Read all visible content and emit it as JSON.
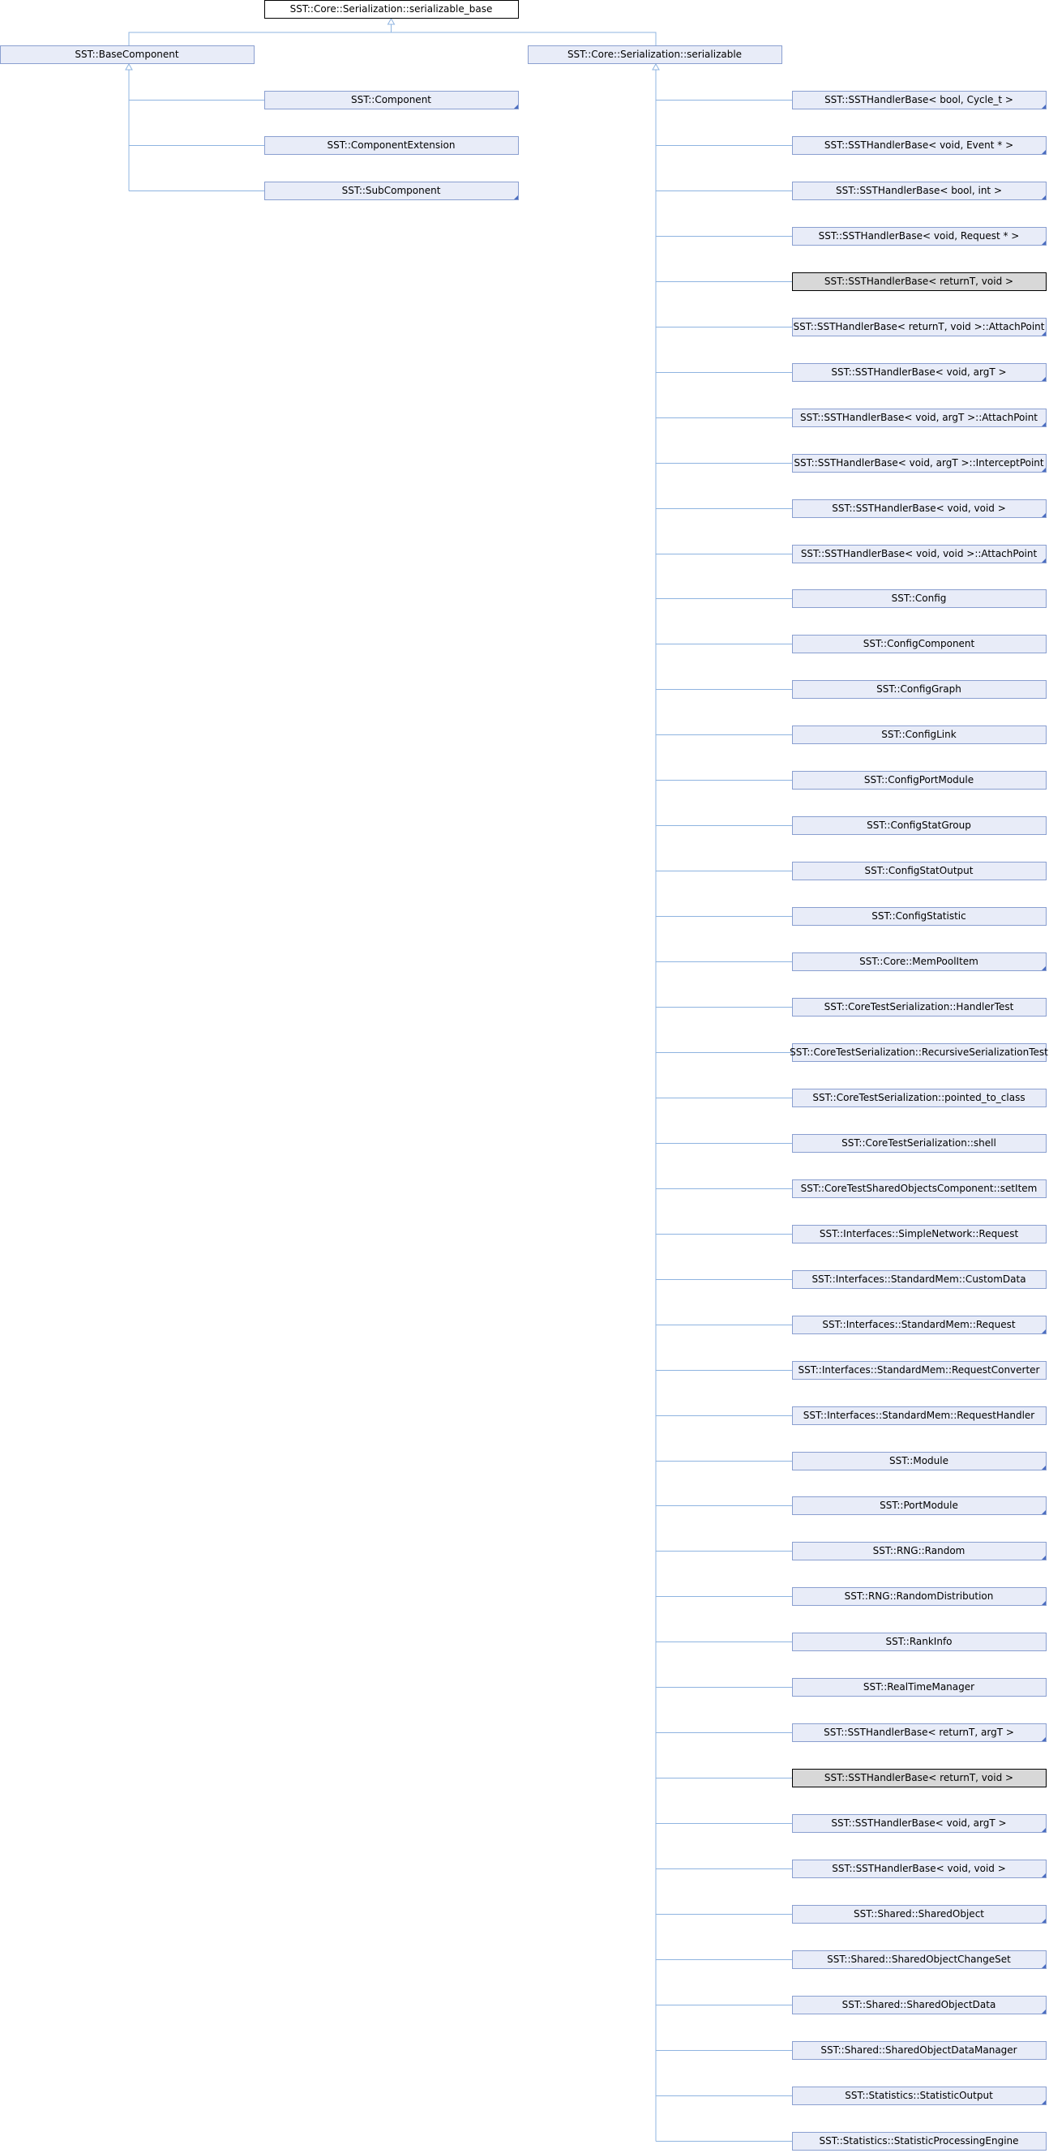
{
  "root": {
    "label": "SST::Core::Serialization::serializable_base"
  },
  "parents": [
    {
      "label": "SST::BaseComponent"
    },
    {
      "label": "SST::Core::Serialization::serializable"
    }
  ],
  "left_children": [
    {
      "label": "SST::Component",
      "more": true
    },
    {
      "label": "SST::ComponentExtension",
      "more": false
    },
    {
      "label": "SST::SubComponent",
      "more": true
    }
  ],
  "right_children": [
    {
      "label": "SST::SSTHandlerBase< bool, Cycle_t >",
      "more": true
    },
    {
      "label": "SST::SSTHandlerBase< void, Event * >",
      "more": true
    },
    {
      "label": "SST::SSTHandlerBase< bool, int >",
      "more": true
    },
    {
      "label": "SST::SSTHandlerBase< void, Request * >",
      "more": true
    },
    {
      "label": "SST::SSTHandlerBase< returnT, void >",
      "more": false,
      "highlight": true
    },
    {
      "label": "SST::SSTHandlerBase< returnT, void >::AttachPoint",
      "more": true
    },
    {
      "label": "SST::SSTHandlerBase< void, argT >",
      "more": true
    },
    {
      "label": "SST::SSTHandlerBase< void, argT >::AttachPoint",
      "more": true
    },
    {
      "label": "SST::SSTHandlerBase< void, argT >::InterceptPoint",
      "more": true
    },
    {
      "label": "SST::SSTHandlerBase< void, void >",
      "more": true
    },
    {
      "label": "SST::SSTHandlerBase< void, void >::AttachPoint",
      "more": true
    },
    {
      "label": "SST::Config",
      "more": false
    },
    {
      "label": "SST::ConfigComponent",
      "more": false
    },
    {
      "label": "SST::ConfigGraph",
      "more": false
    },
    {
      "label": "SST::ConfigLink",
      "more": false
    },
    {
      "label": "SST::ConfigPortModule",
      "more": false
    },
    {
      "label": "SST::ConfigStatGroup",
      "more": false
    },
    {
      "label": "SST::ConfigStatOutput",
      "more": false
    },
    {
      "label": "SST::ConfigStatistic",
      "more": false
    },
    {
      "label": "SST::Core::MemPoolItem",
      "more": true
    },
    {
      "label": "SST::CoreTestSerialization::HandlerTest",
      "more": false
    },
    {
      "label": "SST::CoreTestSerialization::RecursiveSerializationTest",
      "more": false
    },
    {
      "label": "SST::CoreTestSerialization::pointed_to_class",
      "more": false
    },
    {
      "label": "SST::CoreTestSerialization::shell",
      "more": false
    },
    {
      "label": "SST::CoreTestSharedObjectsComponent::setItem",
      "more": false
    },
    {
      "label": "SST::Interfaces::SimpleNetwork::Request",
      "more": false
    },
    {
      "label": "SST::Interfaces::StandardMem::CustomData",
      "more": false
    },
    {
      "label": "SST::Interfaces::StandardMem::Request",
      "more": true
    },
    {
      "label": "SST::Interfaces::StandardMem::RequestConverter",
      "more": false
    },
    {
      "label": "SST::Interfaces::StandardMem::RequestHandler",
      "more": false
    },
    {
      "label": "SST::Module",
      "more": true
    },
    {
      "label": "SST::PortModule",
      "more": true
    },
    {
      "label": "SST::RNG::Random",
      "more": true
    },
    {
      "label": "SST::RNG::RandomDistribution",
      "more": true
    },
    {
      "label": "SST::RankInfo",
      "more": false
    },
    {
      "label": "SST::RealTimeManager",
      "more": false
    },
    {
      "label": "SST::SSTHandlerBase< returnT, argT >",
      "more": true
    },
    {
      "label": "SST::SSTHandlerBase< returnT, void >",
      "more": false,
      "highlight": true
    },
    {
      "label": "SST::SSTHandlerBase< void, argT >",
      "more": true
    },
    {
      "label": "SST::SSTHandlerBase< void, void >",
      "more": true
    },
    {
      "label": "SST::Shared::SharedObject",
      "more": true
    },
    {
      "label": "SST::Shared::SharedObjectChangeSet",
      "more": true
    },
    {
      "label": "SST::Shared::SharedObjectData",
      "more": true
    },
    {
      "label": "SST::Shared::SharedObjectDataManager",
      "more": false
    },
    {
      "label": "SST::Statistics::StatisticOutput",
      "more": true
    },
    {
      "label": "SST::Statistics::StatisticProcessingEngine",
      "more": false
    }
  ]
}
